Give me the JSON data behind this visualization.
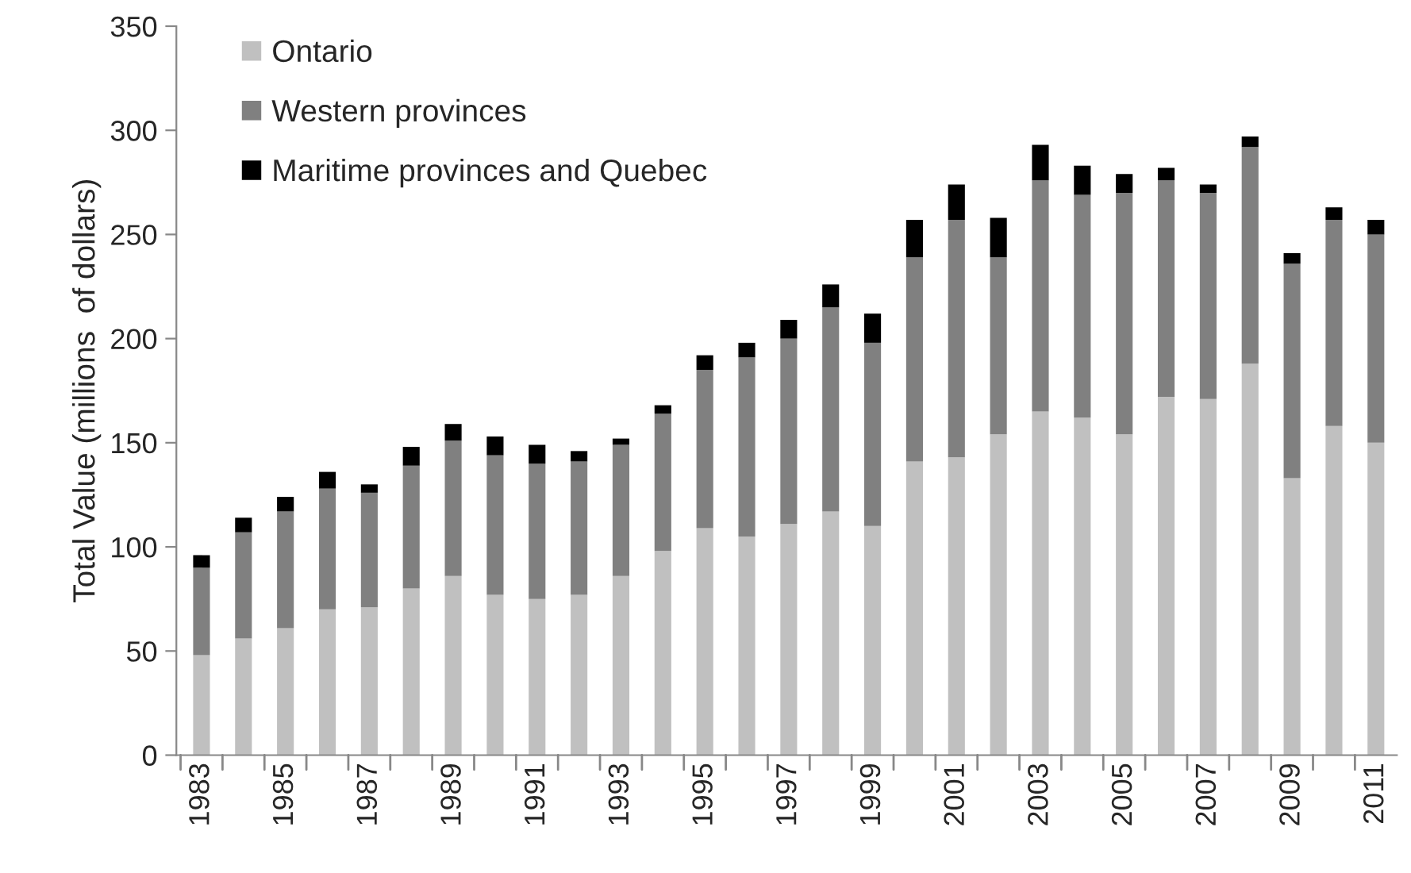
{
  "chart_data": {
    "type": "bar",
    "stacked": true,
    "ylabel": "Total Value (millions  of dollars)",
    "categories": [
      "1983",
      null,
      "1985",
      null,
      "1987",
      null,
      "1989",
      null,
      "1991",
      null,
      "1993",
      null,
      "1995",
      null,
      "1997",
      null,
      "1999",
      null,
      "2001",
      null,
      "2003",
      null,
      "2005",
      null,
      "2007",
      null,
      "2009",
      null,
      "2011"
    ],
    "series": [
      {
        "name": "Ontario",
        "color": "#c0c0c0",
        "values": [
          48,
          56,
          61,
          70,
          71,
          80,
          86,
          77,
          75,
          77,
          86,
          98,
          109,
          105,
          111,
          117,
          110,
          141,
          143,
          154,
          165,
          162,
          154,
          172,
          171,
          188,
          133,
          158,
          150
        ]
      },
      {
        "name": "Western provinces",
        "color": "#808080",
        "values": [
          42,
          51,
          56,
          58,
          55,
          59,
          65,
          67,
          65,
          64,
          63,
          66,
          76,
          86,
          89,
          98,
          88,
          98,
          114,
          85,
          111,
          107,
          116,
          104,
          99,
          104,
          103,
          99,
          100
        ]
      },
      {
        "name": "Maritime provinces and Quebec",
        "color": "#000000",
        "values": [
          6,
          7,
          7,
          8,
          4,
          9,
          8,
          9,
          9,
          5,
          3,
          4,
          7,
          7,
          9,
          11,
          14,
          18,
          17,
          19,
          17,
          14,
          9,
          6,
          4,
          5,
          5,
          6,
          7
        ]
      }
    ],
    "ylim": [
      0,
      350
    ],
    "yticks": [
      0,
      50,
      100,
      150,
      200,
      250,
      300,
      350
    ],
    "grid": false,
    "legend": "top left"
  }
}
